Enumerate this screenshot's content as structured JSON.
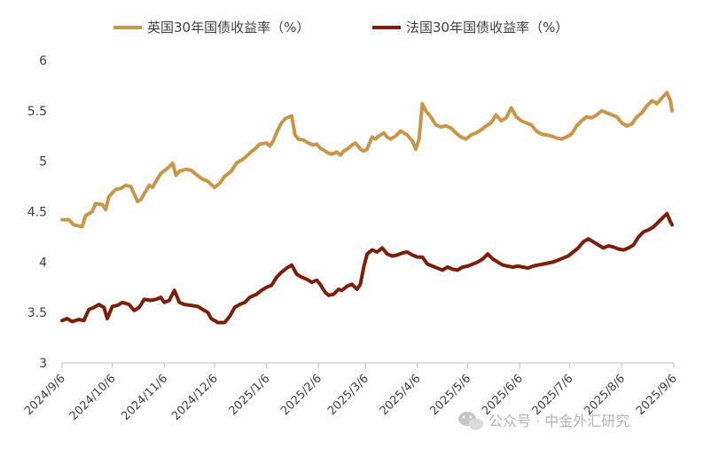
{
  "chart_data": {
    "type": "line",
    "title": "",
    "xlabel": "",
    "ylabel": "",
    "ylim": [
      3,
      6
    ],
    "y_ticks": [
      "3",
      "3.5",
      "4",
      "4.5",
      "5",
      "5.5",
      "6"
    ],
    "x_ticks": [
      "2024/9/6",
      "2024/10/6",
      "2024/11/6",
      "2024/12/6",
      "2025/1/6",
      "2025/2/6",
      "2025/3/6",
      "2025/4/6",
      "2025/5/6",
      "2025/6/6",
      "2025/7/6",
      "2025/8/6",
      "2025/9/6"
    ],
    "grid": false,
    "legend": "top",
    "x_start": "2024-09-06",
    "series": [
      {
        "name": "英国30年国债收益率（%）",
        "color": "#C8964B",
        "points": [
          [
            "2024-09-06",
            4.42
          ],
          [
            "2024-09-10",
            4.42
          ],
          [
            "2024-09-13",
            4.37
          ],
          [
            "2024-09-18",
            4.35
          ],
          [
            "2024-09-20",
            4.46
          ],
          [
            "2024-09-24",
            4.5
          ],
          [
            "2024-09-26",
            4.58
          ],
          [
            "2024-09-30",
            4.57
          ],
          [
            "2024-10-02",
            4.52
          ],
          [
            "2024-10-04",
            4.65
          ],
          [
            "2024-10-08",
            4.72
          ],
          [
            "2024-10-11",
            4.73
          ],
          [
            "2024-10-14",
            4.76
          ],
          [
            "2024-10-17",
            4.75
          ],
          [
            "2024-10-21",
            4.6
          ],
          [
            "2024-10-23",
            4.62
          ],
          [
            "2024-10-28",
            4.76
          ],
          [
            "2024-10-30",
            4.74
          ],
          [
            "2024-11-01",
            4.8
          ],
          [
            "2024-11-04",
            4.88
          ],
          [
            "2024-11-08",
            4.93
          ],
          [
            "2024-11-11",
            4.98
          ],
          [
            "2024-11-13",
            4.86
          ],
          [
            "2024-11-15",
            4.9
          ],
          [
            "2024-11-19",
            4.92
          ],
          [
            "2024-11-22",
            4.91
          ],
          [
            "2024-11-25",
            4.87
          ],
          [
            "2024-11-28",
            4.83
          ],
          [
            "2024-12-02",
            4.8
          ],
          [
            "2024-12-06",
            4.74
          ],
          [
            "2024-12-09",
            4.78
          ],
          [
            "2024-12-12",
            4.85
          ],
          [
            "2024-12-16",
            4.9
          ],
          [
            "2024-12-19",
            4.98
          ],
          [
            "2024-12-23",
            5.02
          ],
          [
            "2024-12-27",
            5.08
          ],
          [
            "2024-12-30",
            5.12
          ],
          [
            "2025-01-02",
            5.17
          ],
          [
            "2025-01-06",
            5.18
          ],
          [
            "2025-01-08",
            5.15
          ],
          [
            "2025-01-10",
            5.2
          ],
          [
            "2025-01-13",
            5.32
          ],
          [
            "2025-01-15",
            5.38
          ],
          [
            "2025-01-17",
            5.42
          ],
          [
            "2025-01-21",
            5.45
          ],
          [
            "2025-01-23",
            5.26
          ],
          [
            "2025-01-25",
            5.22
          ],
          [
            "2025-01-28",
            5.21
          ],
          [
            "2025-01-31",
            5.18
          ],
          [
            "2025-02-03",
            5.16
          ],
          [
            "2025-02-05",
            5.17
          ],
          [
            "2025-02-07",
            5.13
          ],
          [
            "2025-02-10",
            5.1
          ],
          [
            "2025-02-12",
            5.08
          ],
          [
            "2025-02-14",
            5.07
          ],
          [
            "2025-02-17",
            5.09
          ],
          [
            "2025-02-19",
            5.06
          ],
          [
            "2025-02-21",
            5.1
          ],
          [
            "2025-02-24",
            5.13
          ],
          [
            "2025-02-26",
            5.16
          ],
          [
            "2025-02-28",
            5.18
          ],
          [
            "2025-03-03",
            5.12
          ],
          [
            "2025-03-05",
            5.1
          ],
          [
            "2025-03-07",
            5.12
          ],
          [
            "2025-03-10",
            5.24
          ],
          [
            "2025-03-12",
            5.22
          ],
          [
            "2025-03-14",
            5.25
          ],
          [
            "2025-03-17",
            5.28
          ],
          [
            "2025-03-19",
            5.24
          ],
          [
            "2025-03-21",
            5.22
          ],
          [
            "2025-03-24",
            5.25
          ],
          [
            "2025-03-27",
            5.3
          ],
          [
            "2025-03-31",
            5.26
          ],
          [
            "2025-04-03",
            5.2
          ],
          [
            "2025-04-05",
            5.12
          ],
          [
            "2025-04-07",
            5.22
          ],
          [
            "2025-04-09",
            5.57
          ],
          [
            "2025-04-11",
            5.5
          ],
          [
            "2025-04-14",
            5.44
          ],
          [
            "2025-04-17",
            5.36
          ],
          [
            "2025-04-20",
            5.34
          ],
          [
            "2025-04-23",
            5.35
          ],
          [
            "2025-04-26",
            5.33
          ],
          [
            "2025-04-29",
            5.28
          ],
          [
            "2025-05-02",
            5.24
          ],
          [
            "2025-05-05",
            5.22
          ],
          [
            "2025-05-08",
            5.26
          ],
          [
            "2025-05-11",
            5.28
          ],
          [
            "2025-05-14",
            5.31
          ],
          [
            "2025-05-17",
            5.35
          ],
          [
            "2025-05-20",
            5.38
          ],
          [
            "2025-05-23",
            5.46
          ],
          [
            "2025-05-26",
            5.4
          ],
          [
            "2025-05-29",
            5.43
          ],
          [
            "2025-06-01",
            5.53
          ],
          [
            "2025-06-04",
            5.44
          ],
          [
            "2025-06-07",
            5.4
          ],
          [
            "2025-06-10",
            5.38
          ],
          [
            "2025-06-13",
            5.36
          ],
          [
            "2025-06-16",
            5.3
          ],
          [
            "2025-06-19",
            5.27
          ],
          [
            "2025-06-22",
            5.26
          ],
          [
            "2025-06-25",
            5.25
          ],
          [
            "2025-06-28",
            5.23
          ],
          [
            "2025-07-01",
            5.22
          ],
          [
            "2025-07-04",
            5.24
          ],
          [
            "2025-07-07",
            5.27
          ],
          [
            "2025-07-10",
            5.35
          ],
          [
            "2025-07-13",
            5.4
          ],
          [
            "2025-07-16",
            5.44
          ],
          [
            "2025-07-19",
            5.43
          ],
          [
            "2025-07-22",
            5.46
          ],
          [
            "2025-07-25",
            5.5
          ],
          [
            "2025-07-28",
            5.48
          ],
          [
            "2025-07-31",
            5.46
          ],
          [
            "2025-08-03",
            5.44
          ],
          [
            "2025-08-06",
            5.38
          ],
          [
            "2025-08-09",
            5.35
          ],
          [
            "2025-08-12",
            5.37
          ],
          [
            "2025-08-15",
            5.44
          ],
          [
            "2025-08-18",
            5.48
          ],
          [
            "2025-08-21",
            5.55
          ],
          [
            "2025-08-24",
            5.6
          ],
          [
            "2025-08-27",
            5.57
          ],
          [
            "2025-08-30",
            5.63
          ],
          [
            "2025-09-02",
            5.68
          ],
          [
            "2025-09-04",
            5.6
          ],
          [
            "2025-09-05",
            5.5
          ]
        ]
      },
      {
        "name": "法国30年国债收益率（%）",
        "color": "#7B1E0A",
        "points": [
          [
            "2024-09-06",
            3.42
          ],
          [
            "2024-09-09",
            3.44
          ],
          [
            "2024-09-12",
            3.41
          ],
          [
            "2024-09-16",
            3.43
          ],
          [
            "2024-09-19",
            3.42
          ],
          [
            "2024-09-22",
            3.53
          ],
          [
            "2024-09-25",
            3.55
          ],
          [
            "2024-09-28",
            3.58
          ],
          [
            "2024-10-01",
            3.55
          ],
          [
            "2024-10-03",
            3.44
          ],
          [
            "2024-10-06",
            3.56
          ],
          [
            "2024-10-09",
            3.57
          ],
          [
            "2024-10-12",
            3.6
          ],
          [
            "2024-10-16",
            3.58
          ],
          [
            "2024-10-19",
            3.52
          ],
          [
            "2024-10-22",
            3.55
          ],
          [
            "2024-10-25",
            3.63
          ],
          [
            "2024-10-29",
            3.62
          ],
          [
            "2024-11-01",
            3.63
          ],
          [
            "2024-11-04",
            3.65
          ],
          [
            "2024-11-06",
            3.6
          ],
          [
            "2024-11-09",
            3.62
          ],
          [
            "2024-11-12",
            3.72
          ],
          [
            "2024-11-15",
            3.6
          ],
          [
            "2024-11-18",
            3.58
          ],
          [
            "2024-11-22",
            3.57
          ],
          [
            "2024-11-26",
            3.56
          ],
          [
            "2024-11-29",
            3.53
          ],
          [
            "2024-12-02",
            3.5
          ],
          [
            "2024-12-04",
            3.44
          ],
          [
            "2024-12-08",
            3.4
          ],
          [
            "2024-12-12",
            3.4
          ],
          [
            "2024-12-15",
            3.46
          ],
          [
            "2024-12-18",
            3.55
          ],
          [
            "2024-12-21",
            3.58
          ],
          [
            "2024-12-24",
            3.6
          ],
          [
            "2024-12-27",
            3.65
          ],
          [
            "2024-12-31",
            3.68
          ],
          [
            "2025-01-03",
            3.72
          ],
          [
            "2025-01-06",
            3.75
          ],
          [
            "2025-01-09",
            3.77
          ],
          [
            "2025-01-12",
            3.85
          ],
          [
            "2025-01-15",
            3.9
          ],
          [
            "2025-01-18",
            3.94
          ],
          [
            "2025-01-21",
            3.97
          ],
          [
            "2025-01-24",
            3.88
          ],
          [
            "2025-01-27",
            3.85
          ],
          [
            "2025-01-30",
            3.83
          ],
          [
            "2025-02-02",
            3.8
          ],
          [
            "2025-02-05",
            3.82
          ],
          [
            "2025-02-07",
            3.78
          ],
          [
            "2025-02-10",
            3.7
          ],
          [
            "2025-02-12",
            3.67
          ],
          [
            "2025-02-15",
            3.68
          ],
          [
            "2025-02-18",
            3.73
          ],
          [
            "2025-02-20",
            3.72
          ],
          [
            "2025-02-23",
            3.76
          ],
          [
            "2025-02-26",
            3.78
          ],
          [
            "2025-03-01",
            3.73
          ],
          [
            "2025-03-03",
            3.78
          ],
          [
            "2025-03-05",
            3.95
          ],
          [
            "2025-03-07",
            4.08
          ],
          [
            "2025-03-10",
            4.12
          ],
          [
            "2025-03-13",
            4.1
          ],
          [
            "2025-03-16",
            4.14
          ],
          [
            "2025-03-19",
            4.08
          ],
          [
            "2025-03-22",
            4.06
          ],
          [
            "2025-03-25",
            4.07
          ],
          [
            "2025-03-28",
            4.09
          ],
          [
            "2025-03-31",
            4.1
          ],
          [
            "2025-04-03",
            4.07
          ],
          [
            "2025-04-06",
            4.05
          ],
          [
            "2025-04-09",
            4.05
          ],
          [
            "2025-04-12",
            3.98
          ],
          [
            "2025-04-15",
            3.96
          ],
          [
            "2025-04-18",
            3.94
          ],
          [
            "2025-04-21",
            3.92
          ],
          [
            "2025-04-24",
            3.95
          ],
          [
            "2025-04-27",
            3.93
          ],
          [
            "2025-04-30",
            3.92
          ],
          [
            "2025-05-03",
            3.95
          ],
          [
            "2025-05-06",
            3.96
          ],
          [
            "2025-05-09",
            3.98
          ],
          [
            "2025-05-12",
            4.0
          ],
          [
            "2025-05-15",
            4.03
          ],
          [
            "2025-05-18",
            4.08
          ],
          [
            "2025-05-21",
            4.03
          ],
          [
            "2025-05-24",
            4.0
          ],
          [
            "2025-05-27",
            3.97
          ],
          [
            "2025-05-30",
            3.96
          ],
          [
            "2025-06-02",
            3.95
          ],
          [
            "2025-06-05",
            3.96
          ],
          [
            "2025-06-08",
            3.95
          ],
          [
            "2025-06-11",
            3.94
          ],
          [
            "2025-06-14",
            3.96
          ],
          [
            "2025-06-17",
            3.97
          ],
          [
            "2025-06-20",
            3.98
          ],
          [
            "2025-06-23",
            3.99
          ],
          [
            "2025-06-26",
            4.0
          ],
          [
            "2025-06-29",
            4.02
          ],
          [
            "2025-07-02",
            4.04
          ],
          [
            "2025-07-05",
            4.06
          ],
          [
            "2025-07-08",
            4.1
          ],
          [
            "2025-07-11",
            4.14
          ],
          [
            "2025-07-14",
            4.2
          ],
          [
            "2025-07-17",
            4.23
          ],
          [
            "2025-07-20",
            4.2
          ],
          [
            "2025-07-23",
            4.17
          ],
          [
            "2025-07-26",
            4.14
          ],
          [
            "2025-07-29",
            4.16
          ],
          [
            "2025-08-01",
            4.15
          ],
          [
            "2025-08-04",
            4.13
          ],
          [
            "2025-08-07",
            4.12
          ],
          [
            "2025-08-10",
            4.14
          ],
          [
            "2025-08-13",
            4.17
          ],
          [
            "2025-08-16",
            4.25
          ],
          [
            "2025-08-19",
            4.3
          ],
          [
            "2025-08-22",
            4.32
          ],
          [
            "2025-08-25",
            4.35
          ],
          [
            "2025-08-28",
            4.4
          ],
          [
            "2025-08-31",
            4.45
          ],
          [
            "2025-09-02",
            4.48
          ],
          [
            "2025-09-04",
            4.4
          ],
          [
            "2025-09-05",
            4.37
          ]
        ]
      }
    ]
  },
  "watermark": {
    "text": "公众号 · 中金外汇研究",
    "icon": "wechat-icon"
  }
}
